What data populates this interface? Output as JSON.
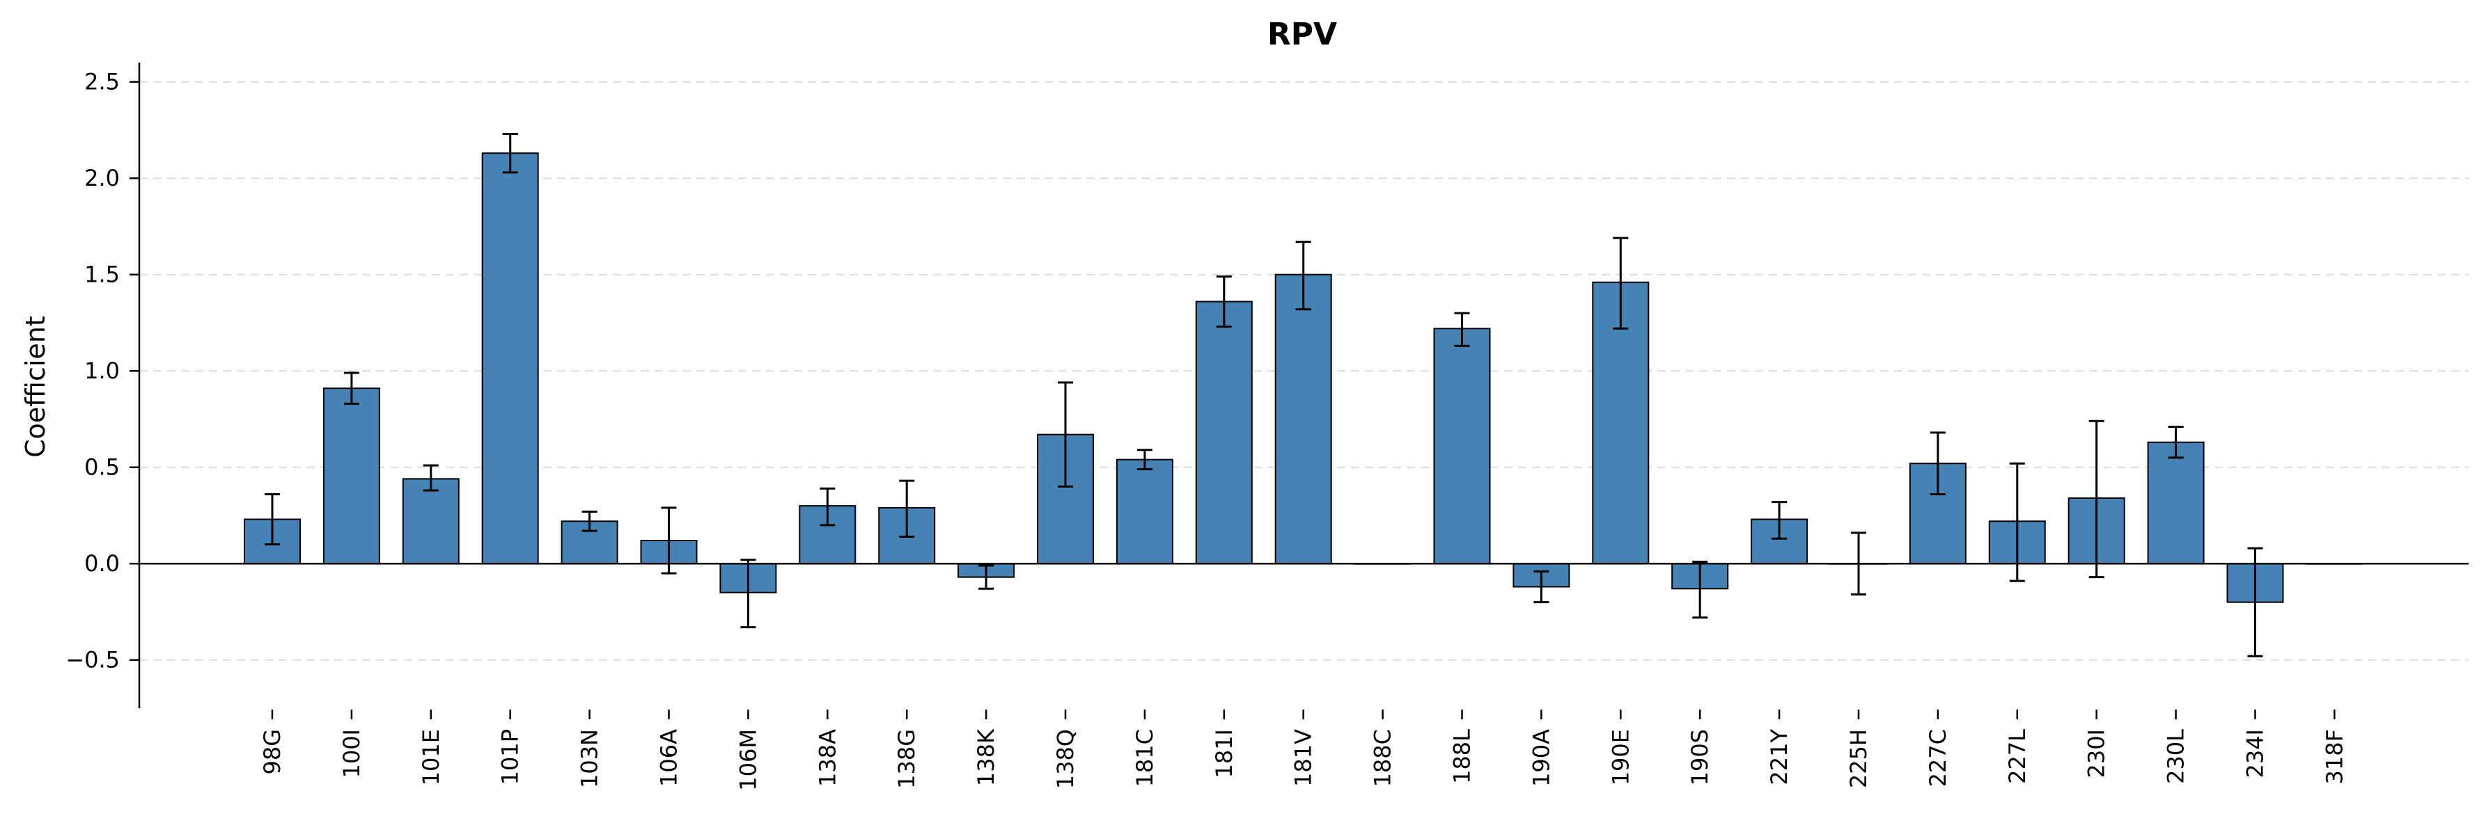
{
  "chart_data": {
    "type": "bar",
    "title": "RPV",
    "xlabel": "",
    "ylabel": "Coefficient",
    "ylim": [
      -0.75,
      2.6
    ],
    "yticks": [
      -0.5,
      0.0,
      0.5,
      1.0,
      1.5,
      2.0,
      2.5
    ],
    "ytick_labels": [
      "−0.5",
      "0.0",
      "0.5",
      "1.0",
      "1.5",
      "2.0",
      "2.5"
    ],
    "grid": true,
    "bar_color": "#4682b4",
    "categories": [
      "98G",
      "100I",
      "101E",
      "101P",
      "103N",
      "106A",
      "106M",
      "138A",
      "138G",
      "138K",
      "138Q",
      "181C",
      "181I",
      "181V",
      "188C",
      "188L",
      "190A",
      "190E",
      "190S",
      "221Y",
      "225H",
      "227C",
      "227L",
      "230I",
      "230L",
      "234I",
      "318F"
    ],
    "values": [
      0.23,
      0.91,
      0.44,
      2.13,
      0.22,
      0.12,
      -0.15,
      0.3,
      0.29,
      -0.07,
      0.67,
      0.54,
      1.36,
      1.5,
      0.0,
      1.22,
      -0.12,
      1.46,
      -0.13,
      0.23,
      0.0,
      0.52,
      0.22,
      0.34,
      0.63,
      -0.2,
      0.0
    ],
    "error_low": [
      0.1,
      0.83,
      0.38,
      2.03,
      0.17,
      -0.05,
      -0.33,
      0.2,
      0.14,
      -0.13,
      0.4,
      0.49,
      1.23,
      1.32,
      0.0,
      1.13,
      -0.2,
      1.22,
      -0.28,
      0.13,
      -0.16,
      0.36,
      -0.09,
      -0.07,
      0.55,
      -0.48,
      0.0
    ],
    "error_high": [
      0.36,
      0.99,
      0.51,
      2.23,
      0.27,
      0.29,
      0.02,
      0.39,
      0.43,
      -0.01,
      0.94,
      0.59,
      1.49,
      1.67,
      0.0,
      1.3,
      -0.04,
      1.69,
      0.01,
      0.32,
      0.16,
      0.68,
      0.52,
      0.74,
      0.71,
      0.08,
      0.0
    ]
  }
}
